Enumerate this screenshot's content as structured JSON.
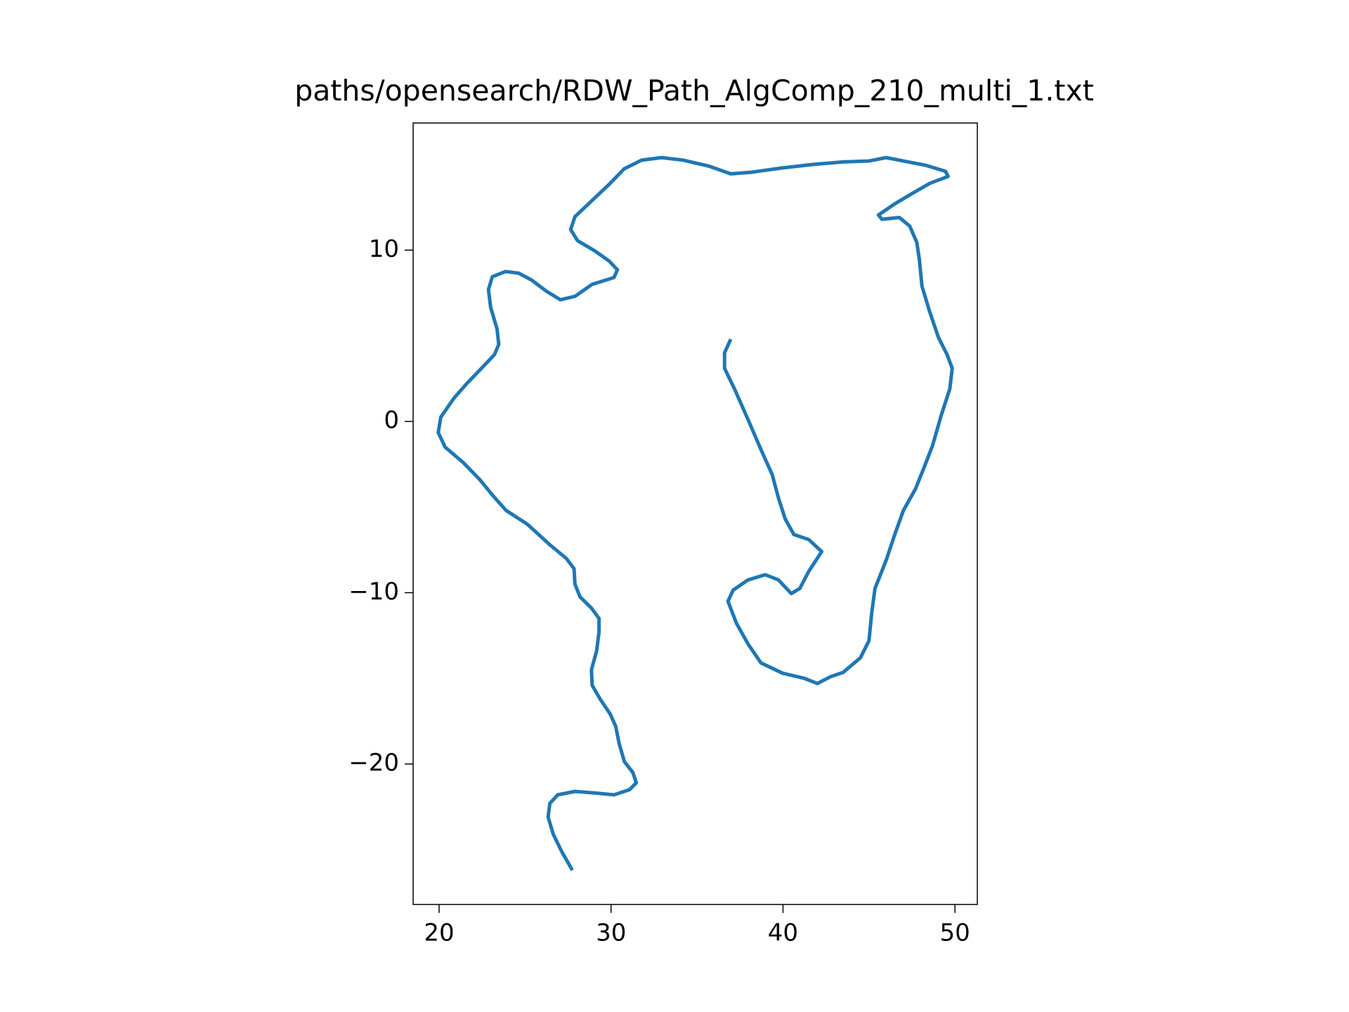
{
  "chart_data": {
    "type": "line",
    "title": "paths/opensearch/RDW_Path_AlgComp_210_multi_1.txt",
    "xlim": [
      18.49,
      51.3
    ],
    "ylim": [
      -28.2,
      17.42
    ],
    "xticks": [
      20,
      30,
      40,
      50
    ],
    "yticks": [
      {
        "value": -20,
        "label": "−20"
      },
      {
        "value": -10,
        "label": "−10"
      },
      0,
      10
    ],
    "grid": false,
    "series": [
      {
        "color": "#1f77b4",
        "x": [
          27.75,
          27.15,
          26.64,
          26.34,
          26.44,
          26.9,
          27.9,
          29.16,
          30.17,
          31.07,
          31.47,
          31.27,
          30.77,
          30.47,
          30.27,
          29.96,
          29.36,
          28.9,
          28.86,
          29.16,
          29.3,
          29.3,
          28.86,
          28.2,
          27.9,
          27.85,
          27.4,
          26.44,
          25.13,
          23.9,
          23.1,
          22.37,
          21.4,
          20.35,
          19.95,
          20.1,
          20.86,
          21.6,
          22.37,
          23.22,
          23.47,
          23.37,
          23.0,
          22.87,
          23.1,
          23.87,
          24.63,
          25.38,
          26.24,
          27.05,
          27.9,
          28.9,
          30.17,
          30.37,
          29.9,
          29.06,
          28.05,
          27.65,
          27.9,
          28.9,
          29.9,
          30.77,
          31.78,
          32.93,
          34.2,
          35.7,
          36.96,
          38.2,
          39.98,
          41.74,
          43.5,
          45.0,
          46.0,
          47.0,
          48.3,
          49.45,
          49.6,
          48.54,
          47.5,
          46.5,
          45.55,
          45.75,
          46.77,
          47.37,
          47.78,
          47.93,
          48.08,
          48.53,
          49.04,
          49.54,
          49.84,
          49.7,
          49.2,
          48.7,
          48.2,
          47.7,
          47.0,
          46.5,
          46.0,
          45.35,
          45.15,
          45.0,
          44.5,
          43.5,
          42.77,
          42.0,
          41.24,
          39.98,
          38.72,
          37.97,
          37.3,
          36.8,
          37.1,
          37.97,
          38.97,
          39.73,
          40.48,
          40.98,
          41.5,
          42.25,
          41.5,
          40.63,
          40.13,
          39.73,
          39.37,
          38.72,
          37.97,
          37.2,
          36.6,
          36.6,
          36.96
        ],
        "values": [
          -26.2,
          -25.15,
          -24.1,
          -23.1,
          -22.3,
          -21.8,
          -21.6,
          -21.7,
          -21.8,
          -21.5,
          -21.1,
          -20.5,
          -19.85,
          -18.8,
          -17.8,
          -17.1,
          -16.2,
          -15.4,
          -14.5,
          -13.4,
          -12.3,
          -11.5,
          -10.9,
          -10.25,
          -9.5,
          -8.6,
          -8.0,
          -7.2,
          -6.0,
          -5.2,
          -4.3,
          -3.4,
          -2.4,
          -1.5,
          -0.65,
          0.25,
          1.35,
          2.2,
          3.0,
          3.9,
          4.5,
          5.4,
          6.65,
          7.7,
          8.45,
          8.75,
          8.65,
          8.25,
          7.6,
          7.1,
          7.3,
          8.0,
          8.4,
          8.85,
          9.35,
          9.95,
          10.55,
          11.2,
          11.95,
          12.9,
          13.85,
          14.75,
          15.25,
          15.4,
          15.25,
          14.9,
          14.45,
          14.55,
          14.8,
          15.0,
          15.15,
          15.2,
          15.4,
          15.2,
          14.95,
          14.6,
          14.3,
          13.9,
          13.3,
          12.7,
          12.05,
          11.8,
          11.9,
          11.4,
          10.45,
          9.45,
          7.9,
          6.4,
          4.9,
          3.9,
          3.1,
          1.9,
          0.35,
          -1.4,
          -2.7,
          -3.95,
          -5.2,
          -6.6,
          -8.1,
          -9.75,
          -11.25,
          -12.8,
          -13.8,
          -14.65,
          -14.9,
          -15.3,
          -15.0,
          -14.7,
          -14.1,
          -13.0,
          -11.8,
          -10.5,
          -9.85,
          -9.25,
          -8.95,
          -9.25,
          -10.05,
          -9.75,
          -8.75,
          -7.6,
          -6.9,
          -6.6,
          -5.7,
          -4.45,
          -3.1,
          -1.65,
          0.1,
          1.85,
          3.1,
          4.0,
          4.8
        ]
      }
    ]
  }
}
